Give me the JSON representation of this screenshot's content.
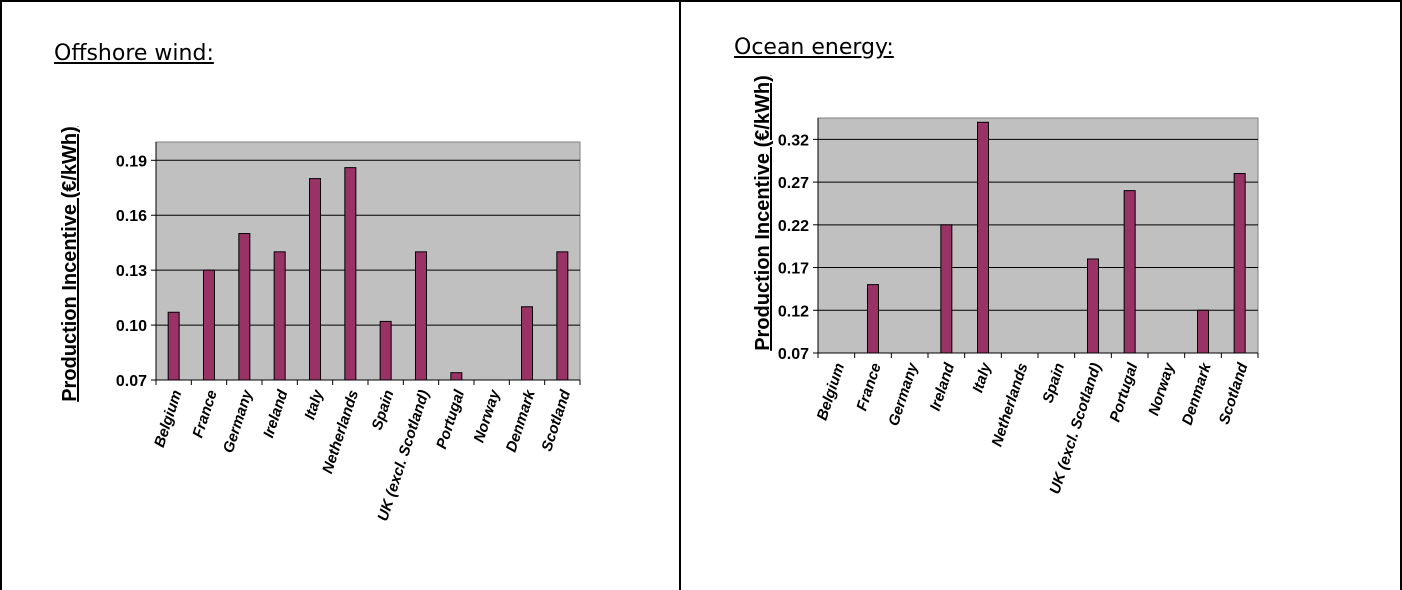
{
  "panels": [
    {
      "title": "Offshore wind:"
    },
    {
      "title": "Ocean energy:"
    }
  ],
  "colors": {
    "bar": "#993366",
    "plot_bg": "#c0c0c0",
    "gridline": "#000000"
  },
  "chart_data": [
    {
      "type": "bar",
      "title": "Offshore wind:",
      "ylabel": "Production Incentive (€/kWh)",
      "xlabel": "",
      "categories": [
        "Belgium",
        "France",
        "Germany",
        "Ireland",
        "Italy",
        "Netherlands",
        "Spain",
        "UK (excl. Scotland)",
        "Portugal",
        "Norway",
        "Denmark",
        "Scotland"
      ],
      "values": [
        0.107,
        0.13,
        0.15,
        0.14,
        0.18,
        0.186,
        0.102,
        0.14,
        0.074,
        null,
        0.11,
        0.14
      ],
      "ylim": [
        0.07,
        0.2
      ],
      "yticks": [
        "0.07",
        "0.10",
        "0.13",
        "0.16",
        "0.19"
      ],
      "grid": true,
      "legend": "none"
    },
    {
      "type": "bar",
      "title": "Ocean energy:",
      "ylabel": "Production Incentive (€/kWh)",
      "xlabel": "",
      "categories": [
        "Belgium",
        "France",
        "Germany",
        "Ireland",
        "Italy",
        "Netherlands",
        "Spain",
        "UK (excl. Scotland)",
        "Portugal",
        "Norway",
        "Denmark",
        "Scotland"
      ],
      "values": [
        null,
        0.15,
        null,
        0.22,
        0.34,
        null,
        null,
        0.18,
        0.26,
        null,
        0.12,
        0.28
      ],
      "ylim": [
        0.07,
        0.345
      ],
      "yticks": [
        "0.07",
        "0.12",
        "0.17",
        "0.22",
        "0.27",
        "0.32"
      ],
      "grid": true,
      "legend": "none"
    }
  ]
}
